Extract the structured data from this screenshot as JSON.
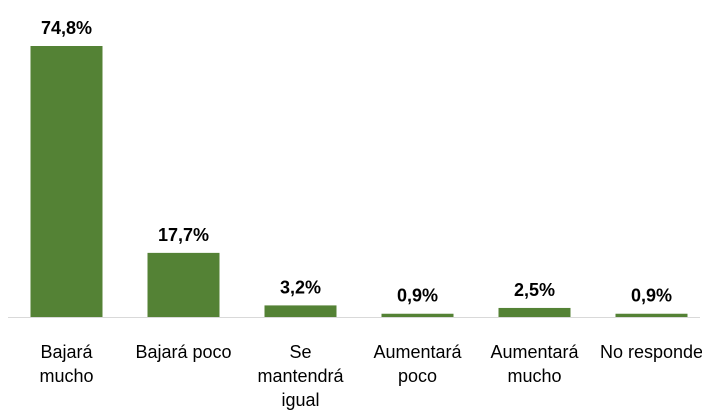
{
  "chart_data": {
    "type": "bar",
    "categories": [
      "Bajará mucho",
      "Bajará poco",
      "Se mantendrá igual",
      "Aumentará poco",
      "Aumentará mucho",
      "No responde"
    ],
    "values": [
      74.8,
      17.7,
      3.2,
      0.9,
      2.5,
      0.9
    ],
    "value_labels": [
      "74,8%",
      "17,7%",
      "3,2%",
      "0,9%",
      "2,5%",
      "0,9%"
    ],
    "color": "#548235"
  }
}
